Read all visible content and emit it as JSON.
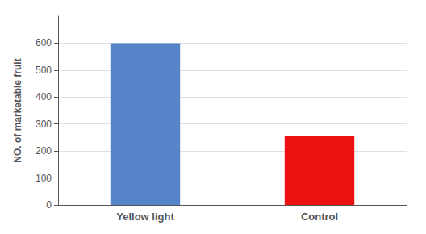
{
  "chart_data": {
    "type": "bar",
    "categories": [
      "Yellow light",
      "Control"
    ],
    "values": [
      600,
      255
    ],
    "colors": [
      "#5585C8",
      "#EE1111"
    ],
    "ylabel": "NO. of marketable fruit",
    "ylim": [
      0,
      700
    ],
    "yticks": [
      0,
      100,
      200,
      300,
      400,
      500,
      600
    ],
    "grid": true
  }
}
